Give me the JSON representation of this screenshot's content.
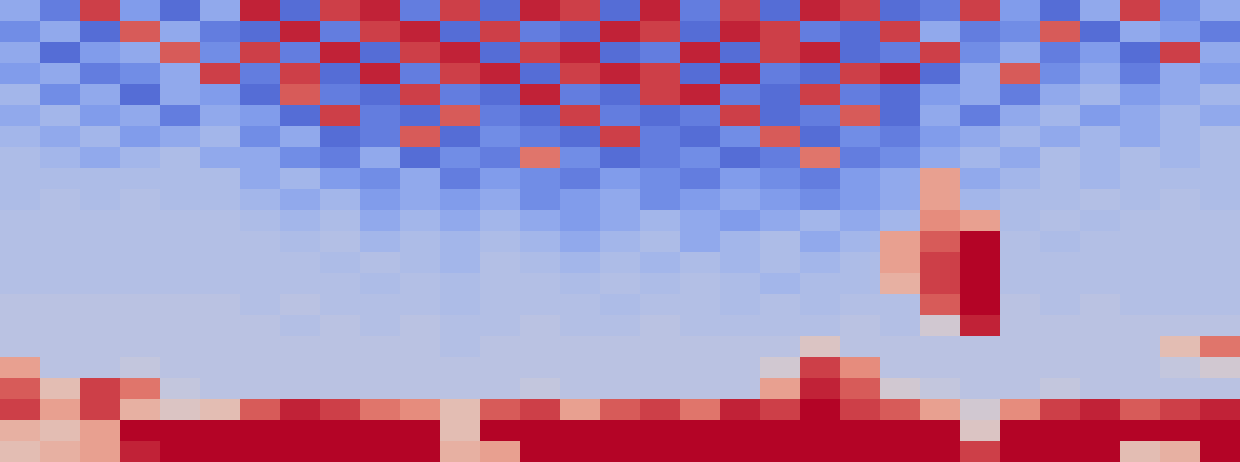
{
  "chart_data": {
    "type": "heatmap",
    "tick_labels": false,
    "zlim": [
      0,
      1
    ],
    "cells": [
      [
        0.3,
        0.15,
        0.9,
        0.25,
        0.1,
        0.3,
        0.95,
        0.1,
        0.9,
        0.95,
        0.15,
        0.9,
        0.1,
        0.95,
        0.9,
        0.1,
        0.95,
        0.15,
        0.9,
        0.1,
        0.95,
        0.9,
        0.1,
        0.15,
        0.9,
        0.25,
        0.1,
        0.3,
        0.9,
        0.2,
        0.3
      ],
      [
        0.2,
        0.3,
        0.1,
        0.85,
        0.3,
        0.15,
        0.1,
        0.95,
        0.15,
        0.9,
        0.95,
        0.1,
        0.9,
        0.15,
        0.1,
        0.95,
        0.9,
        0.1,
        0.95,
        0.9,
        0.15,
        0.1,
        0.9,
        0.3,
        0.15,
        0.2,
        0.85,
        0.1,
        0.3,
        0.25,
        0.15
      ],
      [
        0.3,
        0.1,
        0.25,
        0.3,
        0.85,
        0.2,
        0.9,
        0.15,
        0.95,
        0.1,
        0.9,
        0.95,
        0.1,
        0.9,
        0.95,
        0.1,
        0.15,
        0.95,
        0.1,
        0.9,
        0.95,
        0.1,
        0.15,
        0.9,
        0.2,
        0.3,
        0.15,
        0.25,
        0.1,
        0.9,
        0.3
      ],
      [
        0.25,
        0.3,
        0.15,
        0.2,
        0.3,
        0.9,
        0.15,
        0.9,
        0.1,
        0.95,
        0.15,
        0.9,
        0.95,
        0.1,
        0.9,
        0.95,
        0.9,
        0.1,
        0.95,
        0.15,
        0.1,
        0.9,
        0.95,
        0.1,
        0.3,
        0.85,
        0.2,
        0.3,
        0.15,
        0.3,
        0.25
      ],
      [
        0.35,
        0.2,
        0.3,
        0.1,
        0.3,
        0.25,
        0.1,
        0.85,
        0.15,
        0.1,
        0.9,
        0.15,
        0.1,
        0.95,
        0.15,
        0.1,
        0.9,
        0.95,
        0.15,
        0.1,
        0.9,
        0.15,
        0.1,
        0.25,
        0.3,
        0.15,
        0.3,
        0.35,
        0.25,
        0.3,
        0.35
      ],
      [
        0.3,
        0.35,
        0.25,
        0.3,
        0.15,
        0.3,
        0.25,
        0.1,
        0.9,
        0.15,
        0.1,
        0.85,
        0.15,
        0.1,
        0.9,
        0.15,
        0.1,
        0.15,
        0.9,
        0.1,
        0.15,
        0.85,
        0.1,
        0.3,
        0.15,
        0.3,
        0.35,
        0.25,
        0.3,
        0.35,
        0.3
      ],
      [
        0.35,
        0.3,
        0.35,
        0.25,
        0.3,
        0.35,
        0.2,
        0.3,
        0.1,
        0.15,
        0.85,
        0.1,
        0.2,
        0.15,
        0.1,
        0.9,
        0.15,
        0.1,
        0.2,
        0.85,
        0.1,
        0.2,
        0.15,
        0.25,
        0.3,
        0.35,
        0.3,
        0.35,
        0.3,
        0.35,
        0.38
      ],
      [
        0.38,
        0.35,
        0.3,
        0.35,
        0.38,
        0.3,
        0.3,
        0.2,
        0.15,
        0.3,
        0.1,
        0.2,
        0.15,
        0.8,
        0.2,
        0.1,
        0.15,
        0.2,
        0.1,
        0.15,
        0.8,
        0.15,
        0.2,
        0.3,
        0.35,
        0.3,
        0.38,
        0.35,
        0.38,
        0.35,
        0.38
      ],
      [
        0.38,
        0.38,
        0.38,
        0.38,
        0.38,
        0.38,
        0.3,
        0.35,
        0.25,
        0.2,
        0.3,
        0.15,
        0.25,
        0.2,
        0.15,
        0.25,
        0.2,
        0.15,
        0.25,
        0.2,
        0.15,
        0.25,
        0.3,
        0.7,
        0.3,
        0.35,
        0.38,
        0.35,
        0.38,
        0.38,
        0.38
      ],
      [
        0.38,
        0.4,
        0.38,
        0.4,
        0.38,
        0.38,
        0.35,
        0.3,
        0.35,
        0.25,
        0.3,
        0.25,
        0.3,
        0.2,
        0.25,
        0.3,
        0.2,
        0.25,
        0.3,
        0.25,
        0.2,
        0.25,
        0.3,
        0.7,
        0.35,
        0.38,
        0.38,
        0.4,
        0.38,
        0.4,
        0.38
      ],
      [
        0.4,
        0.4,
        0.4,
        0.4,
        0.4,
        0.4,
        0.38,
        0.35,
        0.38,
        0.3,
        0.35,
        0.3,
        0.35,
        0.3,
        0.25,
        0.3,
        0.35,
        0.3,
        0.25,
        0.3,
        0.35,
        0.3,
        0.35,
        0.75,
        0.7,
        0.38,
        0.4,
        0.38,
        0.4,
        0.4,
        0.4
      ],
      [
        0.4,
        0.4,
        0.4,
        0.4,
        0.4,
        0.4,
        0.4,
        0.38,
        0.4,
        0.35,
        0.38,
        0.35,
        0.38,
        0.35,
        0.3,
        0.35,
        0.38,
        0.3,
        0.35,
        0.38,
        0.3,
        0.35,
        0.7,
        0.85,
        1.0,
        0.4,
        0.38,
        0.4,
        0.4,
        0.4,
        0.4
      ],
      [
        0.4,
        0.4,
        0.4,
        0.4,
        0.4,
        0.4,
        0.4,
        0.4,
        0.38,
        0.4,
        0.38,
        0.35,
        0.4,
        0.38,
        0.35,
        0.38,
        0.35,
        0.38,
        0.35,
        0.38,
        0.35,
        0.38,
        0.7,
        0.9,
        1.0,
        0.4,
        0.4,
        0.4,
        0.4,
        0.4,
        0.4
      ],
      [
        0.4,
        0.4,
        0.4,
        0.4,
        0.4,
        0.4,
        0.4,
        0.4,
        0.4,
        0.38,
        0.4,
        0.38,
        0.4,
        0.4,
        0.38,
        0.4,
        0.38,
        0.4,
        0.38,
        0.35,
        0.38,
        0.38,
        0.65,
        0.9,
        1.0,
        0.4,
        0.4,
        0.4,
        0.4,
        0.4,
        0.4
      ],
      [
        0.42,
        0.42,
        0.42,
        0.42,
        0.42,
        0.42,
        0.4,
        0.42,
        0.4,
        0.4,
        0.4,
        0.38,
        0.4,
        0.4,
        0.4,
        0.38,
        0.4,
        0.4,
        0.38,
        0.4,
        0.38,
        0.4,
        0.4,
        0.85,
        1.0,
        0.42,
        0.4,
        0.42,
        0.4,
        0.4,
        0.4
      ],
      [
        0.42,
        0.42,
        0.42,
        0.42,
        0.42,
        0.42,
        0.42,
        0.4,
        0.42,
        0.4,
        0.42,
        0.4,
        0.4,
        0.42,
        0.4,
        0.4,
        0.42,
        0.4,
        0.4,
        0.4,
        0.4,
        0.42,
        0.4,
        0.5,
        0.95,
        0.42,
        0.42,
        0.42,
        0.42,
        0.42,
        0.42
      ],
      [
        0.42,
        0.42,
        0.42,
        0.42,
        0.42,
        0.42,
        0.42,
        0.42,
        0.42,
        0.42,
        0.42,
        0.4,
        0.42,
        0.42,
        0.42,
        0.42,
        0.42,
        0.42,
        0.42,
        0.42,
        0.55,
        0.42,
        0.42,
        0.42,
        0.42,
        0.42,
        0.42,
        0.42,
        0.42,
        0.6,
        0.8
      ],
      [
        0.7,
        0.42,
        0.42,
        0.45,
        0.42,
        0.42,
        0.42,
        0.42,
        0.42,
        0.42,
        0.42,
        0.42,
        0.42,
        0.42,
        0.42,
        0.42,
        0.42,
        0.42,
        0.42,
        0.5,
        0.9,
        0.75,
        0.42,
        0.42,
        0.42,
        0.42,
        0.42,
        0.42,
        0.42,
        0.45,
        0.5
      ],
      [
        0.85,
        0.6,
        0.9,
        0.8,
        0.45,
        0.42,
        0.42,
        0.42,
        0.42,
        0.42,
        0.42,
        0.42,
        0.42,
        0.45,
        0.42,
        0.42,
        0.42,
        0.42,
        0.42,
        0.7,
        0.95,
        0.85,
        0.5,
        0.45,
        0.42,
        0.42,
        0.45,
        0.42,
        0.42,
        0.42,
        0.42
      ],
      [
        0.9,
        0.7,
        0.9,
        0.65,
        0.55,
        0.6,
        0.85,
        0.95,
        0.9,
        0.8,
        0.75,
        0.6,
        0.85,
        0.9,
        0.7,
        0.85,
        0.9,
        0.8,
        0.95,
        0.9,
        1.0,
        0.9,
        0.85,
        0.7,
        0.5,
        0.75,
        0.9,
        0.95,
        0.85,
        0.9,
        0.95
      ],
      [
        0.65,
        0.6,
        0.7,
        1.0,
        1.0,
        1.0,
        1.0,
        1.0,
        1.0,
        1.0,
        1.0,
        0.6,
        1.0,
        1.0,
        1.0,
        1.0,
        1.0,
        1.0,
        1.0,
        1.0,
        1.0,
        1.0,
        1.0,
        1.0,
        0.55,
        1.0,
        1.0,
        1.0,
        1.0,
        1.0,
        1.0
      ],
      [
        0.6,
        0.65,
        0.7,
        0.95,
        1.0,
        1.0,
        1.0,
        1.0,
        1.0,
        1.0,
        1.0,
        0.65,
        0.7,
        1.0,
        1.0,
        1.0,
        1.0,
        1.0,
        1.0,
        1.0,
        1.0,
        1.0,
        1.0,
        1.0,
        0.9,
        1.0,
        1.0,
        1.0,
        0.6,
        0.65,
        1.0
      ]
    ]
  }
}
